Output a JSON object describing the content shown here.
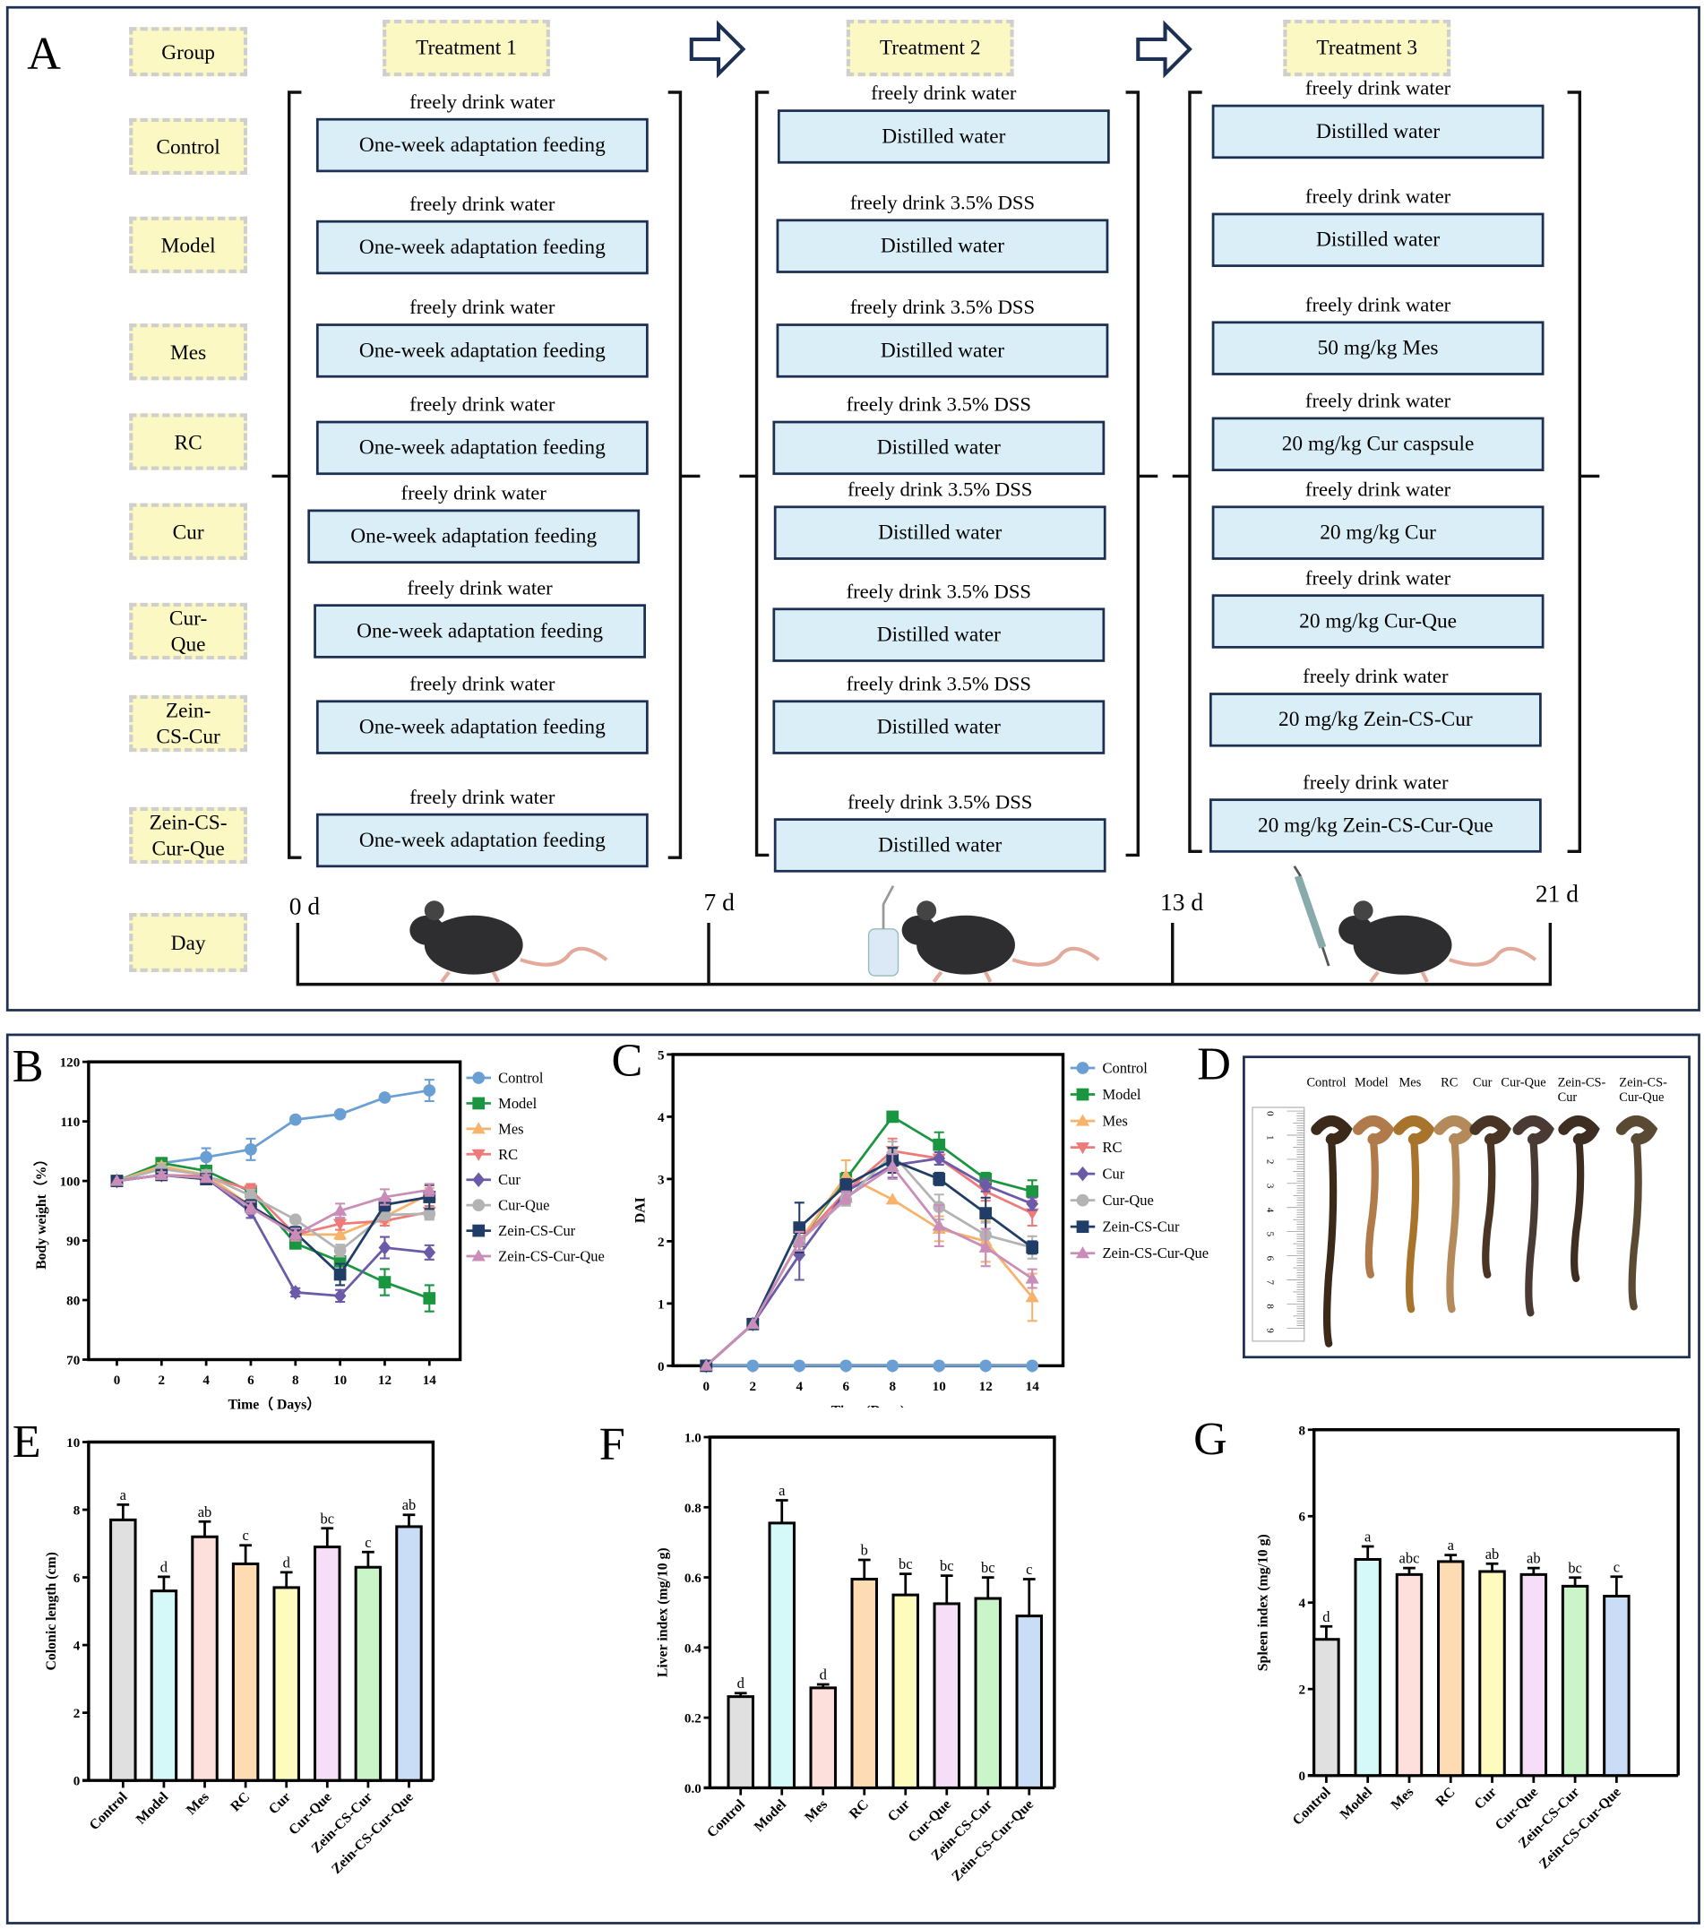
{
  "panel_a": {
    "letter": "A",
    "group_header": "Group",
    "groups": [
      "Control",
      "Model",
      "Mes",
      "RC",
      "Cur",
      "Cur-\nQue",
      "Zein-\nCS-Cur",
      "Zein-CS-\nCur-Que"
    ],
    "day_label": "Day",
    "treatments": [
      {
        "title": "Treatment 1",
        "rows": [
          {
            "caption": "freely drink water",
            "box": "One-week adaptation feeding"
          },
          {
            "caption": "freely drink water",
            "box": "One-week adaptation feeding"
          },
          {
            "caption": "freely drink water",
            "box": "One-week adaptation feeding"
          },
          {
            "caption": "freely drink water",
            "box": "One-week adaptation feeding"
          },
          {
            "caption": "freely drink water",
            "box": "One-week adaptation feeding"
          },
          {
            "caption": "freely drink water",
            "box": "One-week adaptation feeding"
          },
          {
            "caption": "freely drink water",
            "box": "One-week adaptation feeding"
          },
          {
            "caption": "freely drink water",
            "box": "One-week adaptation feeding"
          }
        ]
      },
      {
        "title": "Treatment 2",
        "rows": [
          {
            "caption": "freely drink water",
            "box": "Distilled water"
          },
          {
            "caption": "freely drink 3.5% DSS",
            "box": "Distilled water"
          },
          {
            "caption": "freely drink 3.5% DSS",
            "box": "Distilled water"
          },
          {
            "caption": "freely drink 3.5% DSS",
            "box": "Distilled water"
          },
          {
            "caption": "freely drink 3.5% DSS",
            "box": "Distilled water"
          },
          {
            "caption": "freely drink 3.5% DSS",
            "box": "Distilled water"
          },
          {
            "caption": "freely drink 3.5% DSS",
            "box": "Distilled water"
          },
          {
            "caption": "freely drink 3.5% DSS",
            "box": "Distilled water"
          }
        ]
      },
      {
        "title": "Treatment 3",
        "rows": [
          {
            "caption": "freely drink water",
            "box": "Distilled water"
          },
          {
            "caption": "freely drink water",
            "box": "Distilled water"
          },
          {
            "caption": "freely drink water",
            "box": "50 mg/kg Mes"
          },
          {
            "caption": "freely drink water",
            "box": "20 mg/kg Cur caspsule"
          },
          {
            "caption": "freely drink water",
            "box": "20 mg/kg Cur"
          },
          {
            "caption": "freely drink water",
            "box": "20 mg/kg Cur-Que"
          },
          {
            "caption": "freely drink water",
            "box": "20 mg/kg Zein-CS-Cur"
          },
          {
            "caption": "freely drink water",
            "box": "20 mg/kg Zein-CS-Cur-Que"
          }
        ]
      }
    ],
    "days": [
      "0 d",
      "7 d",
      "13 d",
      "21 d"
    ]
  },
  "panel_letters": {
    "b": "B",
    "c": "C",
    "d": "D",
    "e": "E",
    "f": "F",
    "g": "G"
  },
  "panel_d": {
    "labels": [
      "Control",
      "Model",
      "Mes",
      "RC",
      "Cur",
      "Cur-Que",
      "Zein-CS-\nCur",
      "Zein-CS-\nCur-Que"
    ],
    "ruler_ticks": [
      "0",
      "1",
      "2",
      "3",
      "4",
      "5",
      "6",
      "7",
      "8",
      "9"
    ]
  },
  "colors": {
    "Control": "#6a9fd4",
    "Model": "#1a9641",
    "Mes": "#f5b36b",
    "RC": "#ef7a7a",
    "Cur": "#6a5aa8",
    "Cur-Que": "#b3b3b3",
    "Zein-CS-Cur": "#1f3d66",
    "Zein-CS-Cur-Que": "#c98db8",
    "frame": "#1d2f52",
    "bars": [
      "#e0e0e0",
      "#d5f8f8",
      "#fde0dc",
      "#fddcb4",
      "#fdfcbd",
      "#f6def8",
      "#c9f5c9",
      "#c9def6"
    ]
  },
  "chart_data": [
    {
      "id": "B",
      "type": "line",
      "xlabel": "Time（ Days）",
      "ylabel": "Body weight（%）",
      "ylim": [
        70,
        120
      ],
      "yticks": [
        70,
        80,
        90,
        100,
        110,
        120
      ],
      "x": [
        0,
        2,
        4,
        6,
        8,
        10,
        12,
        14
      ],
      "legend": "right",
      "series": [
        {
          "name": "Control",
          "marker": "circle",
          "values": [
            100,
            103,
            104,
            105.3,
            110.3,
            111.2,
            114,
            115.2
          ],
          "err": [
            0,
            0.5,
            1.5,
            1.8,
            0.5,
            0.5,
            0.3,
            1.8
          ]
        },
        {
          "name": "Model",
          "marker": "square",
          "values": [
            100,
            103,
            101.7,
            98.2,
            89.5,
            86.5,
            83,
            80.3
          ],
          "err": [
            0,
            0.5,
            0.8,
            1,
            0.5,
            2,
            2.2,
            2.2
          ]
        },
        {
          "name": "Mes",
          "marker": "triangle",
          "values": [
            100,
            102.5,
            101,
            95.8,
            91,
            91,
            94,
            97.8
          ],
          "err": [
            0,
            0.5,
            0.8,
            1,
            1,
            0.8,
            1,
            1
          ]
        },
        {
          "name": "RC",
          "marker": "triangle-down",
          "values": [
            100,
            101,
            100.8,
            98.5,
            91,
            92.8,
            93.3,
            94.8
          ],
          "err": [
            0,
            0.5,
            0.5,
            1,
            1,
            1,
            0.8,
            1
          ]
        },
        {
          "name": "Cur",
          "marker": "diamond",
          "values": [
            100,
            101,
            100.5,
            94.8,
            81.3,
            80.7,
            88.8,
            88
          ],
          "err": [
            0,
            0.5,
            0.5,
            1,
            0.7,
            1,
            1.8,
            1.2
          ]
        },
        {
          "name": "Cur-Que",
          "marker": "circle",
          "values": [
            100,
            102,
            101,
            97.5,
            93.5,
            88.3,
            94.3,
            94.5
          ],
          "err": [
            0,
            0.5,
            0.8,
            1,
            0.5,
            1,
            0.8,
            1
          ]
        },
        {
          "name": "Zein-CS-Cur",
          "marker": "square",
          "values": [
            100,
            101,
            100.3,
            95.8,
            91.3,
            84.3,
            96,
            97.3
          ],
          "err": [
            0,
            0.5,
            0.5,
            1,
            1,
            1.8,
            1,
            2
          ]
        },
        {
          "name": "Zein-CS-Cur-Que",
          "marker": "triangle",
          "values": [
            100,
            101,
            100.5,
            95.5,
            91,
            95,
            97.3,
            98.5
          ],
          "err": [
            0,
            0.5,
            0.5,
            1,
            1,
            1.2,
            1.3,
            1
          ]
        }
      ]
    },
    {
      "id": "C",
      "type": "line",
      "xlabel": "Time (Days)",
      "ylabel": "DAI",
      "ylim": [
        0,
        5
      ],
      "yticks": [
        0,
        1,
        2,
        3,
        4,
        5
      ],
      "x": [
        0,
        2,
        4,
        6,
        8,
        10,
        12,
        14
      ],
      "legend": "right",
      "series": [
        {
          "name": "Control",
          "marker": "circle",
          "values": [
            0,
            0,
            0,
            0,
            0,
            0,
            0,
            0
          ],
          "err": [
            0,
            0,
            0,
            0,
            0,
            0,
            0,
            0
          ]
        },
        {
          "name": "Model",
          "marker": "square",
          "values": [
            0,
            0.67,
            2,
            3,
            4,
            3.55,
            3,
            2.8
          ],
          "err": [
            0,
            0,
            0.15,
            0.1,
            0,
            0.2,
            0.1,
            0.18
          ]
        },
        {
          "name": "Mes",
          "marker": "triangle",
          "values": [
            0,
            0.67,
            2,
            3.05,
            2.67,
            2.2,
            2,
            1.1
          ],
          "err": [
            0,
            0,
            0.15,
            0.25,
            0,
            0.2,
            0.33,
            0.38
          ]
        },
        {
          "name": "RC",
          "marker": "triangle-down",
          "values": [
            0,
            0.67,
            2,
            2.8,
            3.45,
            3.33,
            2.8,
            2.45
          ],
          "err": [
            0,
            0,
            0.15,
            0.1,
            0.2,
            0.1,
            0.15,
            0.2
          ]
        },
        {
          "name": "Cur",
          "marker": "diamond",
          "values": [
            0,
            0.67,
            1.78,
            2.8,
            3.22,
            3.33,
            2.9,
            2.6
          ],
          "err": [
            0,
            0,
            0.4,
            0.1,
            0.2,
            0.1,
            0.1,
            0.1
          ]
        },
        {
          "name": "Cur-Que",
          "marker": "circle",
          "values": [
            0,
            0.67,
            2,
            2.67,
            3.4,
            2.55,
            2.1,
            1.9
          ],
          "err": [
            0,
            0,
            0.15,
            0.1,
            0.2,
            0.2,
            0.2,
            0.18
          ]
        },
        {
          "name": "Zein-CS-Cur",
          "marker": "square",
          "values": [
            0,
            0.67,
            2.22,
            2.9,
            3.3,
            3,
            2.45,
            1.9
          ],
          "err": [
            0,
            0,
            0.4,
            0.1,
            0.2,
            0.1,
            0.25,
            0.1
          ]
        },
        {
          "name": "Zein-CS-Cur-Que",
          "marker": "triangle",
          "values": [
            0,
            0.67,
            2,
            2.7,
            3.2,
            2.25,
            1.9,
            1.4
          ],
          "err": [
            0,
            0,
            0.15,
            0.1,
            0.2,
            0.33,
            0.3,
            0.15
          ]
        }
      ]
    },
    {
      "id": "E",
      "type": "bar",
      "ylabel": "Colonic length (cm)",
      "ylim": [
        0,
        10
      ],
      "yticks": [
        0,
        2,
        4,
        6,
        8,
        10
      ],
      "categories": [
        "Control",
        "Model",
        "Mes",
        "RC",
        "Cur",
        "Cur-Que",
        "Zein-CS-Cur",
        "Zein-CS-Cur-Que"
      ],
      "values": [
        7.7,
        5.6,
        7.2,
        6.4,
        5.7,
        6.9,
        6.3,
        7.5
      ],
      "err": [
        0.45,
        0.42,
        0.45,
        0.55,
        0.45,
        0.55,
        0.45,
        0.35
      ],
      "letters": [
        "a",
        "d",
        "ab",
        "c",
        "d",
        "bc",
        "c",
        "ab"
      ]
    },
    {
      "id": "F",
      "type": "bar",
      "ylabel": "Liver index (mg/10 g)",
      "ylim": [
        0,
        1
      ],
      "yticks": [
        "0.0",
        "0.2",
        "0.4",
        "0.6",
        "0.8",
        "1.0"
      ],
      "categories": [
        "Control",
        "Model",
        "Mes",
        "RC",
        "Cur",
        "Cur-Que",
        "Zein-CS-Cur",
        "Zein-CS-Cur-Que"
      ],
      "values": [
        0.26,
        0.755,
        0.285,
        0.595,
        0.55,
        0.525,
        0.54,
        0.49
      ],
      "err": [
        0.01,
        0.065,
        0.01,
        0.055,
        0.06,
        0.08,
        0.06,
        0.105
      ],
      "letters": [
        "d",
        "a",
        "d",
        "b",
        "bc",
        "bc",
        "bc",
        "c"
      ]
    },
    {
      "id": "G",
      "type": "bar",
      "ylabel": "Spleen index (mg/10 g)",
      "ylim": [
        0,
        8
      ],
      "yticks": [
        0,
        2,
        4,
        6,
        8
      ],
      "categories": [
        "Control",
        "Model",
        "Mes",
        "RC",
        "Cur",
        "Cur-Que",
        "Zein-CS-Cur",
        "Zein-CS-Cur-Que"
      ],
      "values": [
        3.15,
        5.0,
        4.65,
        4.95,
        4.72,
        4.65,
        4.38,
        4.15
      ],
      "err": [
        0.3,
        0.3,
        0.15,
        0.15,
        0.18,
        0.15,
        0.2,
        0.45
      ],
      "letters": [
        "d",
        "a",
        "abc",
        "a",
        "ab",
        "ab",
        "bc",
        "c"
      ]
    }
  ]
}
